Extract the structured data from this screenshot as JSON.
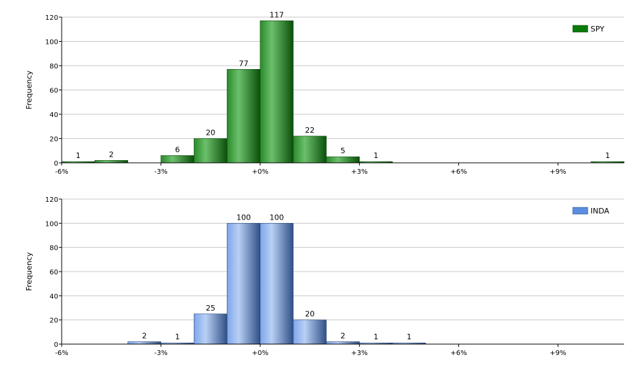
{
  "chart_data": [
    {
      "type": "bar",
      "x": [
        -6,
        -5,
        -4,
        -3,
        -2,
        -1,
        0,
        1,
        2,
        3,
        4,
        5,
        6,
        7,
        8,
        9,
        10
      ],
      "series": [
        {
          "name": "SPY",
          "values": [
            1,
            2,
            0,
            6,
            20,
            77,
            117,
            22,
            5,
            1,
            0,
            0,
            0,
            0,
            0,
            0,
            1
          ]
        }
      ],
      "xtick_labels": [
        "-6%",
        "-3%",
        "+0%",
        "+3%",
        "+6%",
        "+9%"
      ],
      "xticks": [
        -6,
        -3,
        0,
        3,
        6,
        9
      ],
      "xlim": [
        -6,
        11
      ],
      "ylim": [
        0,
        120
      ],
      "yticks": [
        0,
        20,
        40,
        60,
        80,
        100,
        120
      ],
      "ylabel": "Frequency",
      "xlabel": "",
      "title": "",
      "grid": true,
      "legend": "top-right",
      "color": "#0a7a0a"
    },
    {
      "type": "bar",
      "x": [
        -6,
        -5,
        -4,
        -3,
        -2,
        -1,
        0,
        1,
        2,
        3,
        4,
        5,
        6,
        7,
        8,
        9,
        10
      ],
      "series": [
        {
          "name": "INDA",
          "values": [
            0,
            0,
            2,
            1,
            25,
            100,
            100,
            20,
            2,
            1,
            1,
            0,
            0,
            0,
            0,
            0,
            0
          ]
        }
      ],
      "xtick_labels": [
        "-6%",
        "-3%",
        "+0%",
        "+3%",
        "+6%",
        "+9%"
      ],
      "xticks": [
        -6,
        -3,
        0,
        3,
        6,
        9
      ],
      "xlim": [
        -6,
        11
      ],
      "ylim": [
        0,
        120
      ],
      "yticks": [
        0,
        20,
        40,
        60,
        80,
        100,
        120
      ],
      "ylabel": "Frequency",
      "xlabel": "",
      "title": "",
      "grid": true,
      "legend": "top-right",
      "color": "#5b8de0"
    }
  ]
}
